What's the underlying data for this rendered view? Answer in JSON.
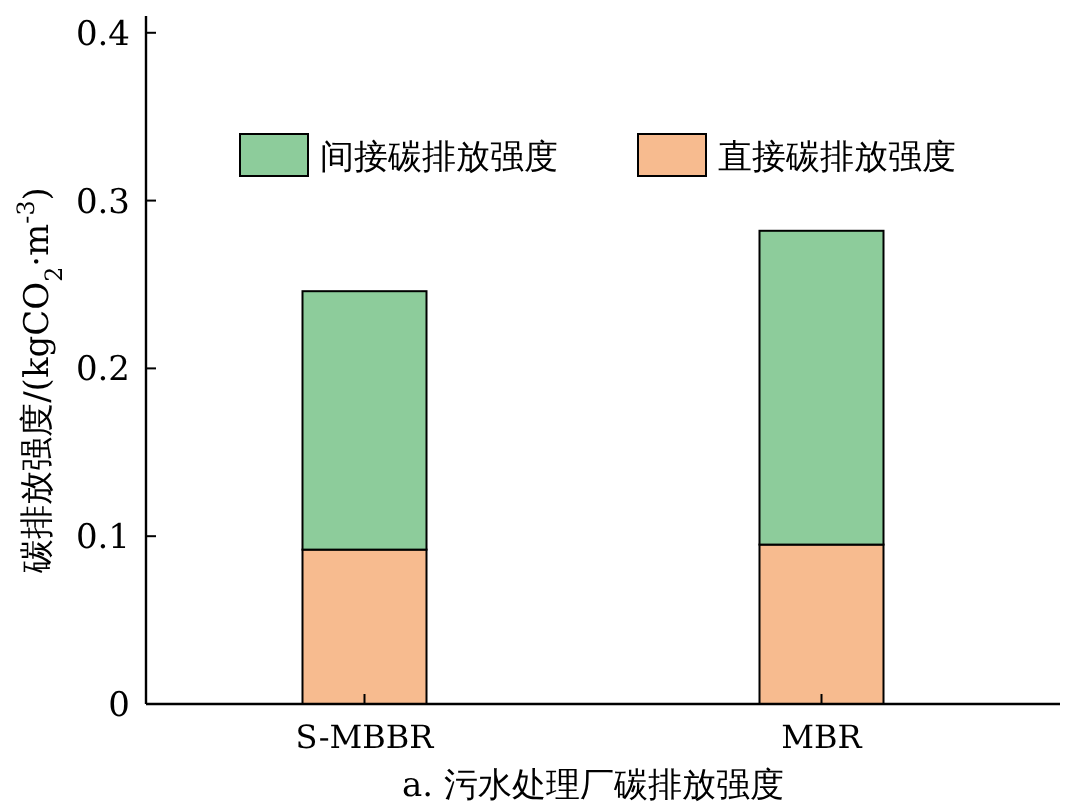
{
  "chart_data": {
    "type": "bar",
    "title": "a. 污水处理厂碳排放强度",
    "ylabel": "碳排放强度/(kgCO$_{2}$·m$^{-3}$)",
    "categories": [
      "S-MBBR",
      "MBR"
    ],
    "stacked": true,
    "legend": "top right",
    "ylim": [
      0,
      0.41
    ],
    "yticks": [
      0,
      0.1,
      0.2,
      0.3,
      0.4
    ],
    "series": [
      {
        "name": "直接碳排放强度",
        "color": "#f7bb8f",
        "values": [
          0.092,
          0.095
        ]
      },
      {
        "name": "间接碳排放强度",
        "color": "#8dcc9b",
        "values": [
          0.154,
          0.187
        ]
      }
    ]
  }
}
